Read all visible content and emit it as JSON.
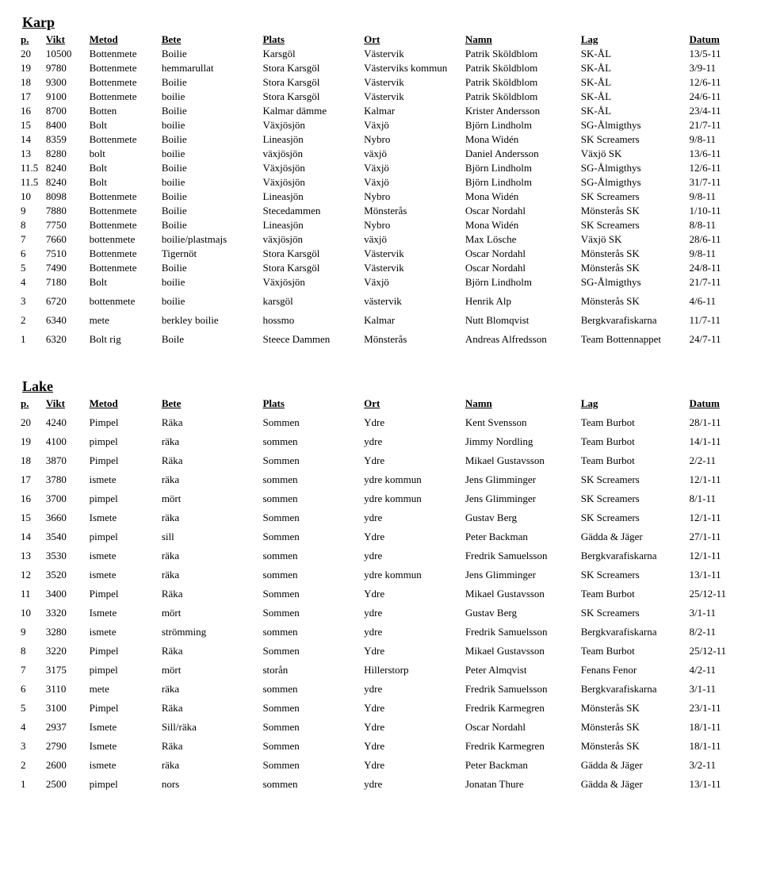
{
  "sections": [
    {
      "title": "Karp",
      "columns": [
        "p.",
        "Vikt",
        "Metod",
        "Bete",
        "Plats",
        "Ort",
        "Namn",
        "Lag",
        "Datum"
      ],
      "spaced_from_idx": 17,
      "rows": [
        [
          "20",
          "10500",
          "Bottenmete",
          "Boilie",
          "Karsgöl",
          "Västervik",
          "Patrik Sköldblom",
          "SK-ÅL",
          "13/5-11"
        ],
        [
          "19",
          "9780",
          "Bottenmete",
          "hemmarullat",
          "Stora Karsgöl",
          "Västerviks kommun",
          "Patrik Sköldblom",
          "SK-ÅL",
          "3/9-11"
        ],
        [
          "18",
          "9300",
          "Bottenmete",
          "Boilie",
          "Stora Karsgöl",
          "Västervik",
          "Patrik Sköldblom",
          "SK-ÅL",
          "12/6-11"
        ],
        [
          "17",
          "9100",
          "Bottenmete",
          "boilie",
          "Stora Karsgöl",
          "Västervik",
          "Patrik Sköldblom",
          "SK-ÅL",
          "24/6-11"
        ],
        [
          "16",
          "8700",
          "Botten",
          "Boilie",
          "Kalmar dämme",
          "Kalmar",
          "Krister Andersson",
          "SK-ÅL",
          "23/4-11"
        ],
        [
          "15",
          "8400",
          "Bolt",
          "boilie",
          "Växjösjön",
          "Växjö",
          "Björn Lindholm",
          "SG-Ålmigthys",
          "21/7-11"
        ],
        [
          "14",
          "8359",
          "Bottenmete",
          "Boilie",
          "Lineasjön",
          "Nybro",
          "Mona Widén",
          "SK Screamers",
          "9/8-11"
        ],
        [
          "13",
          "8280",
          "bolt",
          "boilie",
          "växjösjön",
          "växjö",
          "Daniel Andersson",
          "Växjö SK",
          "13/6-11"
        ],
        [
          "11.5",
          "8240",
          "Bolt",
          "Boilie",
          "Växjösjön",
          "Växjö",
          "Björn Lindholm",
          "SG-Ålmigthys",
          "12/6-11"
        ],
        [
          "11.5",
          "8240",
          "Bolt",
          "boilie",
          "Växjösjön",
          "Växjö",
          "Björn Lindholm",
          "SG-Ålmigthys",
          "31/7-11"
        ],
        [
          "10",
          "8098",
          "Bottenmete",
          "Boilie",
          "Lineasjön",
          "Nybro",
          "Mona Widén",
          "SK Screamers",
          "9/8-11"
        ],
        [
          "9",
          "7880",
          "Bottenmete",
          "Boilie",
          "Stecedammen",
          "Mönsterås",
          "Oscar Nordahl",
          "Mönsterås SK",
          "1/10-11"
        ],
        [
          "8",
          "7750",
          "Bottenmete",
          "Boilie",
          "Lineasjön",
          "Nybro",
          "Mona Widén",
          "SK Screamers",
          "8/8-11"
        ],
        [
          "7",
          "7660",
          "bottenmete",
          "boilie/plastmajs",
          "växjösjön",
          "växjö",
          "Max Lösche",
          "Växjö SK",
          "28/6-11"
        ],
        [
          "6",
          "7510",
          "Bottenmete",
          "Tigernöt",
          "Stora Karsgöl",
          "Västervik",
          "Oscar Nordahl",
          "Mönsterås SK",
          "9/8-11"
        ],
        [
          "5",
          "7490",
          "Bottenmete",
          "Boilie",
          "Stora Karsgöl",
          "Västervik",
          "Oscar Nordahl",
          "Mönsterås SK",
          "24/8-11"
        ],
        [
          "4",
          "7180",
          "Bolt",
          "boilie",
          "Växjösjön",
          "Växjö",
          "Björn Lindholm",
          "SG-Ålmigthys",
          "21/7-11"
        ],
        [
          "3",
          "6720",
          "bottenmete",
          "boilie",
          "karsgöl",
          "västervik",
          "Henrik Alp",
          "Mönsterås SK",
          "4/6-11"
        ],
        [
          "2",
          "6340",
          "mete",
          "berkley boilie",
          "hossmo",
          "Kalmar",
          "Nutt Blomqvist",
          "Bergkvarafiskarna",
          "11/7-11"
        ],
        [
          "1",
          "6320",
          "Bolt rig",
          "Boile",
          "Steece Dammen",
          "Mönsterås",
          "Andreas Alfredsson",
          "Team Bottennappet",
          "24/7-11"
        ]
      ]
    },
    {
      "title": "Lake",
      "columns": [
        "p.",
        "Vikt",
        "Metod",
        "Bete",
        "Plats",
        "Ort",
        "Namn",
        "Lag",
        "Datum"
      ],
      "spaced_from_idx": 0,
      "rows": [
        [
          "20",
          "4240",
          "Pimpel",
          "Räka",
          "Sommen",
          "Ydre",
          "Kent Svensson",
          "Team Burbot",
          "28/1-11"
        ],
        [
          "19",
          "4100",
          "pimpel",
          "räka",
          "sommen",
          "ydre",
          "Jimmy Nordling",
          "Team Burbot",
          "14/1-11"
        ],
        [
          "18",
          "3870",
          "Pimpel",
          "Räka",
          "Sommen",
          "Ydre",
          "Mikael Gustavsson",
          "Team Burbot",
          "2/2-11"
        ],
        [
          "17",
          "3780",
          "ismete",
          "räka",
          "sommen",
          "ydre kommun",
          "Jens Glimminger",
          "SK Screamers",
          "12/1-11"
        ],
        [
          "16",
          "3700",
          "pimpel",
          "mört",
          "sommen",
          "ydre kommun",
          "Jens Glimminger",
          "SK Screamers",
          "8/1-11"
        ],
        [
          "15",
          "3660",
          "Ismete",
          "räka",
          "Sommen",
          "ydre",
          "Gustav Berg",
          "SK Screamers",
          "12/1-11"
        ],
        [
          "14",
          "3540",
          "pimpel",
          "sill",
          "Sommen",
          "Ydre",
          "Peter Backman",
          "Gädda & Jäger",
          "27/1-11"
        ],
        [
          "13",
          "3530",
          "ismete",
          "räka",
          "sommen",
          "ydre",
          "Fredrik Samuelsson",
          "Bergkvarafiskarna",
          "12/1-11"
        ],
        [
          "12",
          "3520",
          "ismete",
          "räka",
          "sommen",
          "ydre kommun",
          "Jens Glimminger",
          "SK Screamers",
          "13/1-11"
        ],
        [
          "11",
          "3400",
          "Pimpel",
          "Räka",
          "Sommen",
          "Ydre",
          "Mikael Gustavsson",
          "Team Burbot",
          "25/12-11"
        ],
        [
          "10",
          "3320",
          "Ismete",
          "mört",
          "Sommen",
          "ydre",
          "Gustav Berg",
          "SK Screamers",
          "3/1-11"
        ],
        [
          "9",
          "3280",
          "ismete",
          "strömming",
          "sommen",
          "ydre",
          "Fredrik Samuelsson",
          "Bergkvarafiskarna",
          "8/2-11"
        ],
        [
          "8",
          "3220",
          "Pimpel",
          "Räka",
          "Sommen",
          "Ydre",
          "Mikael Gustavsson",
          "Team Burbot",
          "25/12-11"
        ],
        [
          "7",
          "3175",
          "pimpel",
          "mört",
          "storån",
          "Hillerstorp",
          "Peter Almqvist",
          "Fenans Fenor",
          "4/2-11"
        ],
        [
          "6",
          "3110",
          "mete",
          "räka",
          "sommen",
          "ydre",
          "Fredrik Samuelsson",
          "Bergkvarafiskarna",
          "3/1-11"
        ],
        [
          "5",
          "3100",
          "Pimpel",
          "Räka",
          "Sommen",
          "Ydre",
          "Fredrik Karmegren",
          "Mönsterås SK",
          "23/1-11"
        ],
        [
          "4",
          "2937",
          "Ismete",
          "Sill/räka",
          "Sommen",
          "Ydre",
          "Oscar Nordahl",
          "Mönsterås SK",
          "18/1-11"
        ],
        [
          "3",
          "2790",
          "Ismete",
          "Räka",
          "Sommen",
          "Ydre",
          "Fredrik Karmegren",
          "Mönsterås SK",
          "18/1-11"
        ],
        [
          "2",
          "2600",
          "ismete",
          "räka",
          "Sommen",
          "Ydre",
          "Peter Backman",
          "Gädda & Jäger",
          "3/2-11"
        ],
        [
          "1",
          "2500",
          "pimpel",
          "nors",
          "sommen",
          "ydre",
          "Jonatan Thure",
          "Gädda & Jäger",
          "13/1-11"
        ]
      ]
    }
  ],
  "styling": {
    "font_family": "Times New Roman",
    "body_font_size_pt": 10,
    "title_font_size_pt": 14,
    "background_color": "#ffffff",
    "text_color": "#000000",
    "col_widths_pct": [
      3.5,
      6,
      10,
      14,
      14,
      14,
      16,
      15,
      7.5
    ]
  }
}
